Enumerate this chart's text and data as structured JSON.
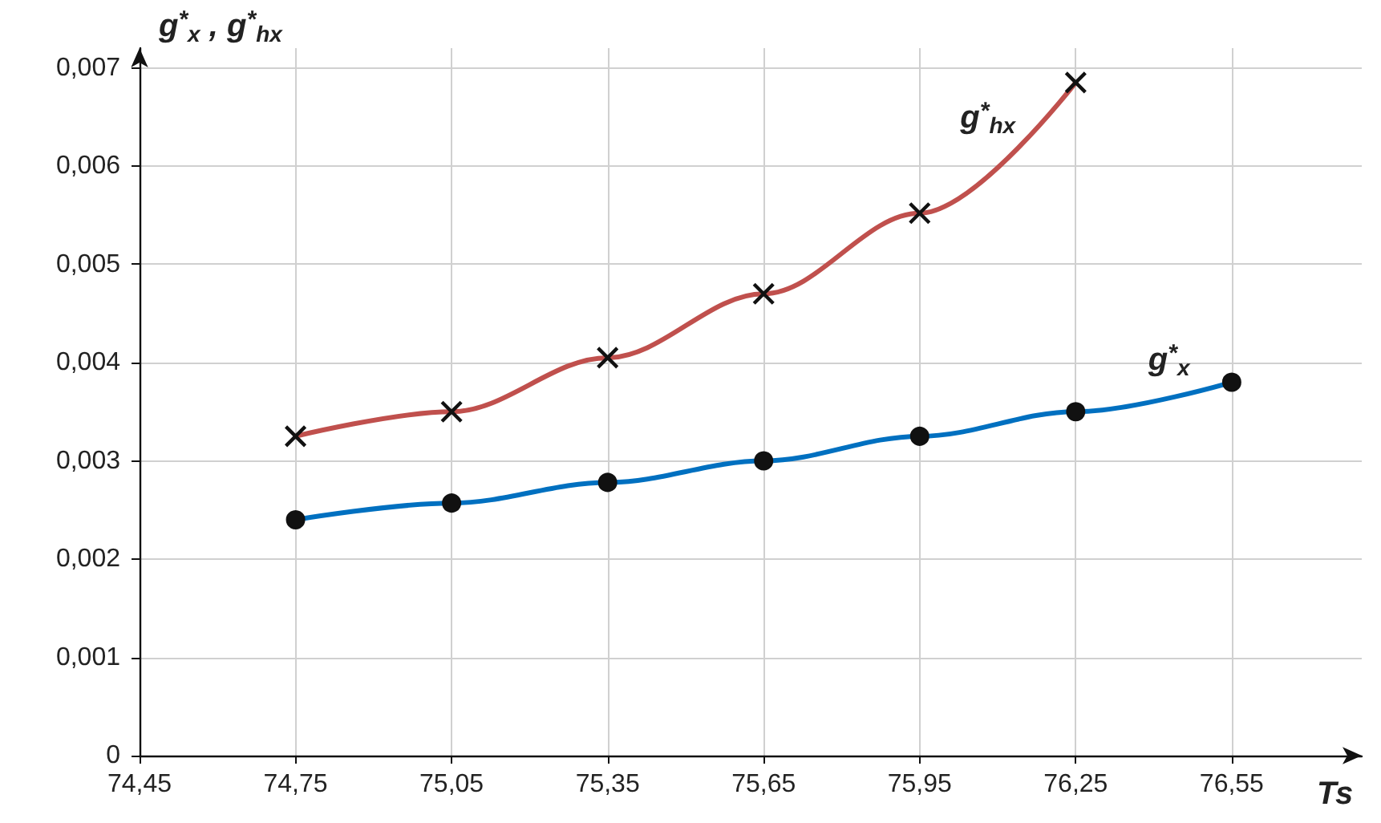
{
  "chart_data": {
    "type": "line",
    "xlabel": "Ts",
    "ylabel": "g$^{*}$$_{x}$ , g$^{*}$$_{hx}$",
    "x": [
      74.75,
      75.05,
      75.35,
      75.65,
      75.95,
      76.25,
      76.55
    ],
    "series": [
      {
        "name": "g$^{*}$$_{hx}$",
        "color": "#c0504d",
        "marker": "cross",
        "x": [
          74.75,
          75.05,
          75.35,
          75.65,
          75.95,
          76.25
        ],
        "values": [
          0.00325,
          0.0035,
          0.00405,
          0.0047,
          0.00552,
          0.00685
        ]
      },
      {
        "name": "g$^{*}$$_{x}$",
        "color": "#0070c0",
        "marker": "circle",
        "values": [
          0.0024,
          0.00257,
          0.00278,
          0.003,
          0.00325,
          0.0035,
          0.0038
        ]
      }
    ],
    "xlim": [
      74.45,
      76.8
    ],
    "xticks": [
      {
        "value": 74.45,
        "label": "74,45"
      },
      {
        "value": 74.75,
        "label": "74,75"
      },
      {
        "value": 75.05,
        "label": "75,05"
      },
      {
        "value": 75.35,
        "label": "75,35"
      },
      {
        "value": 75.65,
        "label": "75,65"
      },
      {
        "value": 75.95,
        "label": "75,95"
      },
      {
        "value": 76.25,
        "label": "76,25"
      },
      {
        "value": 76.55,
        "label": "76,55"
      }
    ],
    "ylim": [
      0,
      0.0072
    ],
    "yticks": [
      0,
      {
        "value": 0.001,
        "label": "0,001"
      },
      {
        "value": 0.002,
        "label": "0,002"
      },
      {
        "value": 0.003,
        "label": "0,003"
      },
      {
        "value": 0.004,
        "label": "0,004"
      },
      {
        "value": 0.005,
        "label": "0,005"
      },
      {
        "value": 0.006,
        "label": "0,006"
      },
      {
        "value": 0.007,
        "label": "0,007"
      }
    ],
    "grid": true,
    "legend": false,
    "line_style": "solid"
  }
}
